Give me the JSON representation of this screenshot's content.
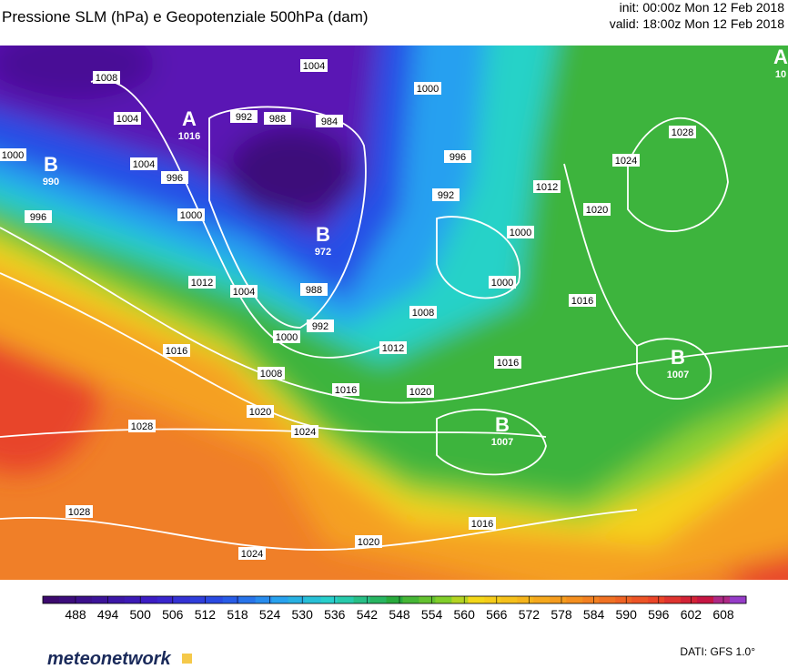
{
  "header": {
    "title": "Pressione SLM (hPa) e Geopotenziale 500hPa (dam)",
    "init": "init: 00:00z Mon 12 Feb 2018",
    "valid": "valid: 18:00z Mon 12 Feb 2018"
  },
  "centers": [
    {
      "letter": "A",
      "value": "1016"
    },
    {
      "letter": "B",
      "value": "990"
    },
    {
      "letter": "B",
      "value": "972"
    },
    {
      "letter": "B",
      "value": "1007"
    },
    {
      "letter": "B",
      "value": "1007"
    },
    {
      "letter": "A",
      "value": "10"
    }
  ],
  "isobar_labels": [
    1008,
    1004,
    1000,
    996,
    1004,
    996,
    1000,
    1012,
    1004,
    1016,
    1008,
    1000,
    992,
    988,
    1004,
    992,
    988,
    984,
    1000,
    996,
    992,
    1012,
    1020,
    1024,
    1028,
    1008,
    1012,
    1016,
    1020,
    1024,
    1020,
    1016,
    1000,
    1000,
    1016,
    1028,
    1028,
    1024,
    1020,
    1016
  ],
  "colorbar": {
    "ticks": [
      488,
      494,
      500,
      506,
      512,
      518,
      524,
      530,
      536,
      542,
      548,
      554,
      560,
      566,
      572,
      578,
      584,
      590,
      596,
      602,
      608
    ]
  },
  "footer": {
    "source": "DATI: GFS 1.0°",
    "logo": "meteonetwork"
  }
}
